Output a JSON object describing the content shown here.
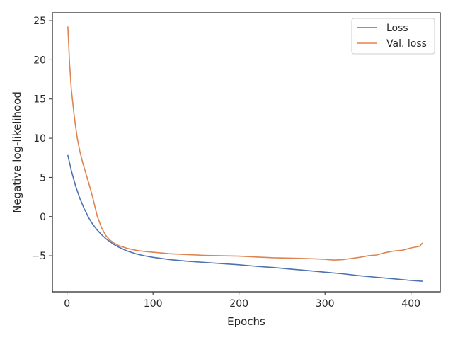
{
  "chart_data": {
    "type": "line",
    "title": "",
    "xlabel": "Epochs",
    "ylabel": "Negative log-likelihood",
    "xlim": [
      -17,
      434
    ],
    "ylim": [
      -9.6,
      26.0
    ],
    "xticks": [
      0,
      100,
      200,
      300,
      400
    ],
    "yticks": [
      -5,
      0,
      5,
      10,
      15,
      20,
      25
    ],
    "grid": false,
    "legend": "top-right",
    "series": [
      {
        "name": "Loss",
        "color": "#4c72b0",
        "x": [
          1,
          5,
          10,
          15,
          20,
          25,
          30,
          35,
          40,
          45,
          50,
          55,
          60,
          70,
          80,
          90,
          100,
          120,
          140,
          160,
          180,
          200,
          220,
          240,
          260,
          280,
          300,
          320,
          340,
          360,
          380,
          400,
          413
        ],
        "y": [
          7.8,
          5.9,
          3.9,
          2.3,
          1.0,
          -0.1,
          -1.0,
          -1.7,
          -2.3,
          -2.8,
          -3.2,
          -3.6,
          -3.9,
          -4.4,
          -4.75,
          -5.0,
          -5.2,
          -5.5,
          -5.7,
          -5.85,
          -6.0,
          -6.15,
          -6.35,
          -6.5,
          -6.7,
          -6.9,
          -7.1,
          -7.3,
          -7.55,
          -7.75,
          -7.95,
          -8.15,
          -8.25
        ]
      },
      {
        "name": "Val. loss",
        "color": "#dd8452",
        "x": [
          1,
          3,
          5,
          8,
          10,
          12,
          15,
          18,
          20,
          25,
          30,
          35,
          40,
          45,
          50,
          55,
          60,
          70,
          80,
          90,
          100,
          120,
          140,
          160,
          180,
          200,
          220,
          240,
          260,
          280,
          300,
          310,
          320,
          330,
          340,
          350,
          360,
          370,
          380,
          390,
          400,
          405,
          410,
          413
        ],
        "y": [
          24.2,
          19.5,
          16.3,
          13.2,
          11.5,
          10.0,
          8.3,
          7.0,
          6.2,
          4.4,
          2.4,
          0.1,
          -1.4,
          -2.4,
          -3.0,
          -3.4,
          -3.7,
          -4.05,
          -4.3,
          -4.45,
          -4.55,
          -4.75,
          -4.85,
          -4.95,
          -5.0,
          -5.05,
          -5.15,
          -5.25,
          -5.3,
          -5.35,
          -5.45,
          -5.55,
          -5.5,
          -5.35,
          -5.2,
          -5.0,
          -4.9,
          -4.6,
          -4.4,
          -4.3,
          -4.0,
          -3.9,
          -3.8,
          -3.4
        ]
      }
    ]
  }
}
